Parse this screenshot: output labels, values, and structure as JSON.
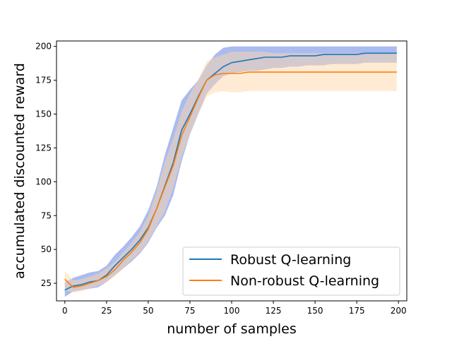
{
  "chart_data": {
    "type": "line",
    "title": "",
    "xlabel": "number of samples",
    "ylabel": "accumulated discounted reward",
    "xlim": [
      -5,
      205
    ],
    "ylim": [
      12,
      204
    ],
    "xticks": [
      0,
      25,
      50,
      75,
      100,
      125,
      150,
      175,
      200
    ],
    "yticks": [
      25,
      50,
      75,
      100,
      125,
      150,
      175,
      200
    ],
    "grid": false,
    "legend_position": "lower-right",
    "x": [
      0,
      5,
      10,
      15,
      20,
      25,
      30,
      35,
      40,
      45,
      50,
      55,
      60,
      65,
      70,
      75,
      80,
      85,
      90,
      95,
      100,
      105,
      110,
      115,
      120,
      125,
      130,
      135,
      140,
      145,
      150,
      155,
      160,
      165,
      170,
      175,
      180,
      185,
      190,
      195,
      199
    ],
    "series": [
      {
        "name": "Robust Q-learning",
        "color": "#1f77b4",
        "band_color": "#4169e1",
        "values": [
          20,
          23,
          24,
          26,
          27,
          31,
          38,
          44,
          50,
          57,
          66,
          80,
          97,
          114,
          138,
          150,
          163,
          175,
          180,
          185,
          188,
          189,
          190,
          191,
          192,
          192,
          192,
          193,
          193,
          193,
          193,
          194,
          194,
          194,
          194,
          194,
          195,
          195,
          195,
          195,
          195
        ],
        "lower": [
          15,
          19,
          20,
          21,
          22,
          26,
          31,
          36,
          41,
          47,
          55,
          66,
          75,
          90,
          115,
          135,
          150,
          165,
          172,
          178,
          180,
          181,
          182,
          182,
          183,
          184,
          184,
          185,
          185,
          186,
          186,
          186,
          187,
          187,
          187,
          187,
          188,
          188,
          188,
          188,
          188
        ],
        "upper": [
          26,
          29,
          31,
          33,
          34,
          38,
          46,
          52,
          59,
          67,
          79,
          96,
          120,
          140,
          160,
          168,
          175,
          186,
          194,
          199,
          200,
          200,
          200,
          200,
          200,
          200,
          200,
          200,
          200,
          200,
          200,
          200,
          200,
          200,
          200,
          200,
          200,
          200,
          200,
          200,
          200
        ]
      },
      {
        "name": "Non-robust Q-learning",
        "color": "#ff7f0e",
        "band_color": "#ffd8a8",
        "values": [
          28,
          22,
          23,
          25,
          27,
          30,
          35,
          42,
          48,
          55,
          65,
          80,
          96,
          112,
          134,
          148,
          162,
          175,
          179,
          180,
          180,
          180,
          181,
          181,
          181,
          181,
          181,
          181,
          181,
          181,
          181,
          181,
          181,
          181,
          181,
          181,
          181,
          181,
          181,
          181,
          181
        ],
        "lower": [
          20,
          18,
          19,
          21,
          23,
          26,
          30,
          36,
          42,
          48,
          56,
          67,
          78,
          95,
          118,
          135,
          150,
          163,
          166,
          167,
          166,
          166,
          167,
          167,
          167,
          167,
          167,
          167,
          167,
          167,
          167,
          167,
          167,
          167,
          167,
          167,
          167,
          167,
          167,
          167,
          167
        ],
        "upper": [
          34,
          27,
          28,
          30,
          32,
          36,
          41,
          48,
          55,
          63,
          75,
          93,
          115,
          132,
          152,
          165,
          176,
          189,
          192,
          194,
          196,
          196,
          196,
          196,
          196,
          195,
          195,
          195,
          195,
          195,
          195,
          195,
          195,
          195,
          195,
          195,
          195,
          195,
          195,
          195,
          195
        ]
      }
    ]
  }
}
